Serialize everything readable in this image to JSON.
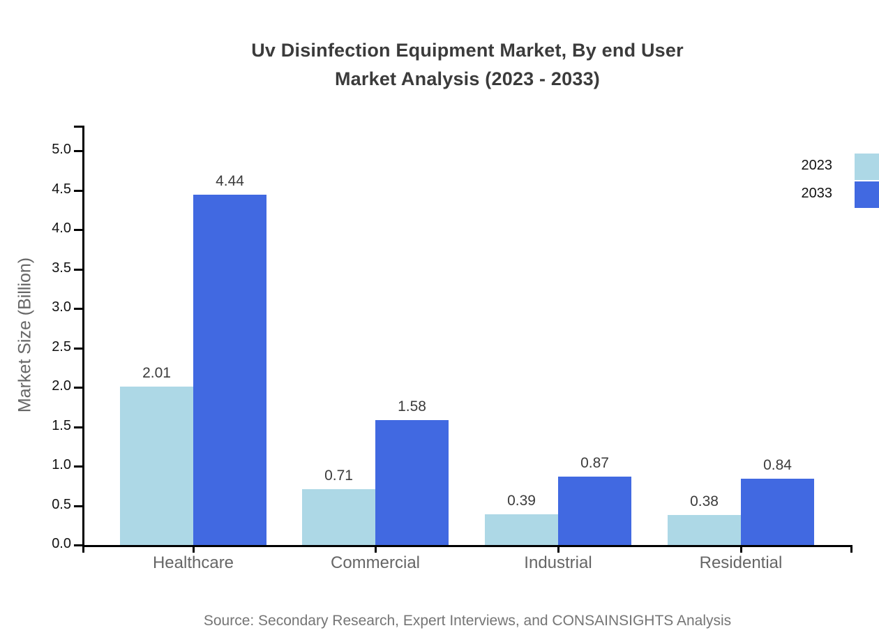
{
  "chart_data": {
    "type": "bar",
    "title_line1": "Uv Disinfection Equipment Market, By end User",
    "title_line2": "Market Analysis (2023 - 2033)",
    "ylabel": "Market Size (Billion)",
    "xlabel": "",
    "categories": [
      "Healthcare",
      "Commercial",
      "Industrial",
      "Residential"
    ],
    "series": [
      {
        "name": "2023",
        "color": "#ADD8E6",
        "values": [
          2.01,
          0.71,
          0.39,
          0.38
        ]
      },
      {
        "name": "2033",
        "color": "#4169E1",
        "values": [
          4.44,
          1.58,
          0.87,
          0.84
        ]
      }
    ],
    "value_labels": [
      "2.01",
      "4.44",
      "0.71",
      "1.58",
      "0.39",
      "0.87",
      "0.38",
      "0.84"
    ],
    "ylim": [
      0.0,
      5.0
    ],
    "ytick_step": 0.5,
    "yticks": [
      "0.0",
      "0.5",
      "1.0",
      "1.5",
      "2.0",
      "2.5",
      "3.0",
      "3.5",
      "4.0",
      "4.5",
      "5.0"
    ],
    "grid": false,
    "legend_position": "top-right"
  },
  "source_note": "Source: Secondary Research, Expert Interviews, and CONSAINSIGHTS Analysis",
  "colors": {
    "background": "#ffffff",
    "title": "#3b3b3b",
    "axis": "#000000",
    "tick_label": "#111111",
    "category_label": "#666666",
    "value_label": "#3b3b3b",
    "source": "#757575",
    "series_2023": "#ADD8E6",
    "series_2033": "#4169E1"
  }
}
